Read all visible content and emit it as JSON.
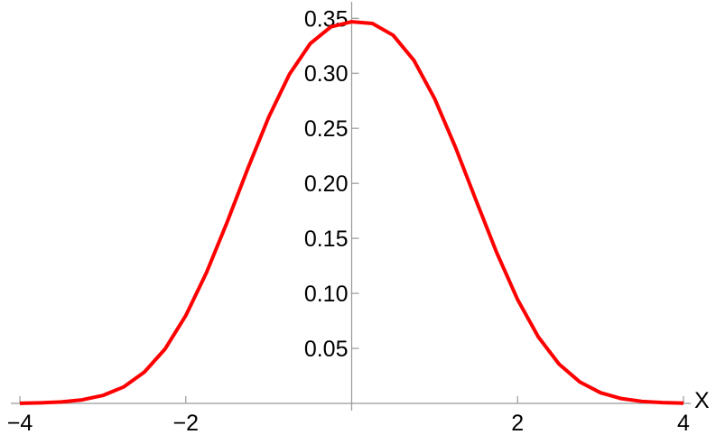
{
  "chart_data": {
    "type": "line",
    "x_label": "X",
    "x": [
      -4,
      -3.75,
      -3.5,
      -3.25,
      -3,
      -2.75,
      -2.5,
      -2.25,
      -2,
      -1.75,
      -1.5,
      -1.25,
      -1,
      -0.75,
      -0.5,
      -0.25,
      0,
      0.25,
      0.5,
      0.75,
      1,
      1.25,
      1.5,
      1.75,
      2,
      2.25,
      2.5,
      2.75,
      3,
      3.25,
      3.5,
      3.75,
      4
    ],
    "series": [
      {
        "color": "#ff0000",
        "values": [
          0.0001,
          0.0005,
          0.0013,
          0.0032,
          0.0072,
          0.0149,
          0.0284,
          0.0494,
          0.0798,
          0.1189,
          0.165,
          0.2139,
          0.2602,
          0.2992,
          0.327,
          0.3423,
          0.3469,
          0.3453,
          0.3346,
          0.3118,
          0.277,
          0.233,
          0.1844,
          0.1367,
          0.0944,
          0.0604,
          0.0357,
          0.0195,
          0.0097,
          0.0044,
          0.0018,
          0.0007,
          0.0002
        ]
      }
    ],
    "xlim": [
      -4,
      4
    ],
    "ylim": [
      0,
      0.365
    ],
    "xticks": [
      {
        "value": -4,
        "label": "−4"
      },
      {
        "value": -2,
        "label": "−2"
      },
      2,
      4
    ],
    "yticks": [
      0.05,
      {
        "value": 0.1,
        "label": "0.10"
      },
      0.15,
      {
        "value": 0.2,
        "label": "0.20"
      },
      0.25,
      {
        "value": 0.3,
        "label": "0.30"
      },
      0.35
    ]
  }
}
